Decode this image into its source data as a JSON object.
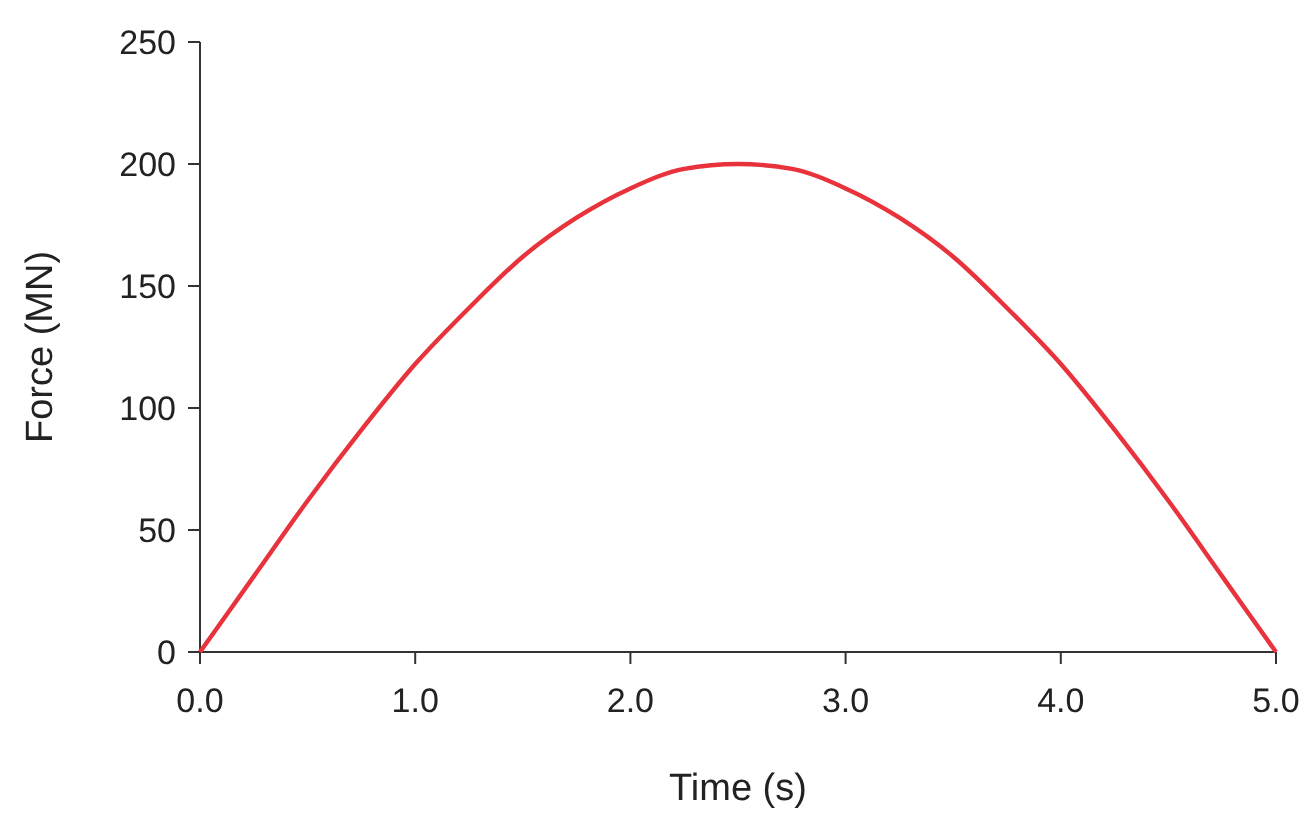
{
  "chart_data": {
    "type": "line",
    "xlabel": "Time (s)",
    "ylabel": "Force (MN)",
    "x": [
      0,
      0.25,
      0.5,
      0.75,
      1.0,
      1.25,
      1.5,
      1.75,
      2.0,
      2.25,
      2.5,
      2.75,
      3.0,
      3.25,
      3.5,
      3.75,
      4.0,
      4.25,
      4.5,
      4.75,
      5.0
    ],
    "series": [
      {
        "color": "#e8323c",
        "values": [
          0,
          31,
          62,
          91,
          118,
          141,
          162,
          178,
          190,
          198,
          200,
          198,
          190,
          178,
          162,
          141,
          118,
          91,
          62,
          31,
          0
        ]
      }
    ],
    "xlim": [
      0,
      5
    ],
    "ylim": [
      0,
      250
    ],
    "xticks": [
      {
        "value": 0,
        "label": "0.0"
      },
      {
        "value": 1,
        "label": "1.0"
      },
      {
        "value": 2,
        "label": "2.0"
      },
      {
        "value": 3,
        "label": "3.0"
      },
      {
        "value": 4,
        "label": "4.0"
      },
      {
        "value": 5,
        "label": "5.0"
      }
    ],
    "yticks": [
      0,
      50,
      100,
      150,
      200,
      250
    ],
    "grid": false,
    "marker": "none",
    "line_style": "solid"
  }
}
